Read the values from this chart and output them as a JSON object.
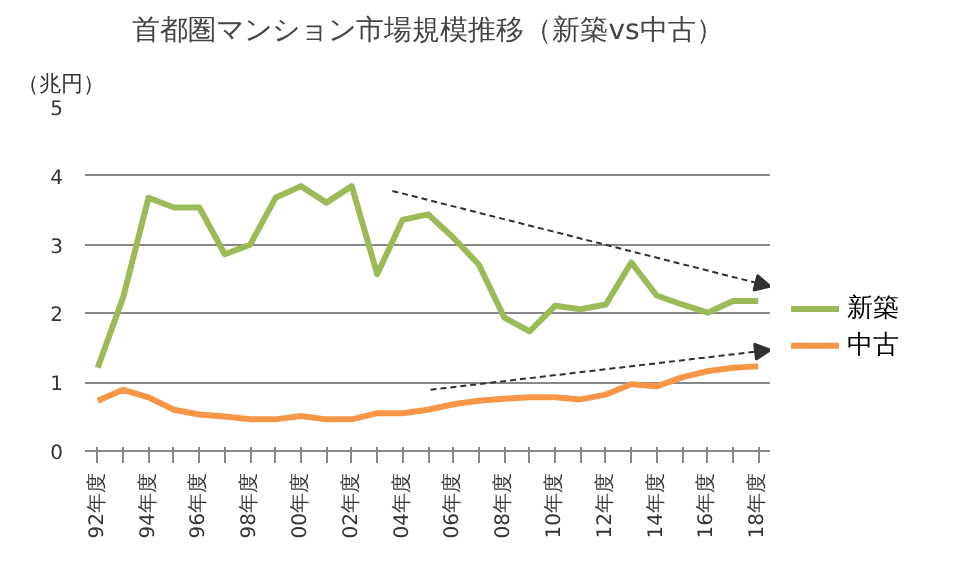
{
  "chart_data": {
    "type": "line",
    "title": "首都圏マンション市場規模推移（新築vs中古）",
    "ylabel": "（兆円）",
    "categories": [
      "92年度",
      null,
      "94年度",
      null,
      "96年度",
      null,
      "98年度",
      null,
      "00年度",
      null,
      "02年度",
      null,
      "04年度",
      null,
      "06年度",
      null,
      "08年度",
      null,
      "10年度",
      null,
      "12年度",
      null,
      "14年度",
      null,
      "16年度",
      null,
      "18年度"
    ],
    "ylim": [
      0,
      5
    ],
    "yticks": [
      0,
      1,
      2,
      3,
      4,
      5
    ],
    "grid": "y",
    "legend": "right",
    "series": [
      {
        "name": "新築",
        "color": "#9bbb59",
        "values": [
          1.21,
          2.23,
          3.68,
          3.54,
          3.54,
          2.86,
          3.0,
          3.68,
          3.85,
          3.61,
          3.85,
          2.57,
          3.36,
          3.44,
          3.1,
          2.71,
          1.94,
          1.74,
          2.11,
          2.06,
          2.13,
          2.74,
          2.26,
          2.13,
          2.01,
          2.18,
          2.18
        ]
      },
      {
        "name": "中古",
        "color": "#f79646",
        "values": [
          0.73,
          0.89,
          0.78,
          0.6,
          0.53,
          0.5,
          0.46,
          0.46,
          0.51,
          0.46,
          0.46,
          0.55,
          0.55,
          0.6,
          0.68,
          0.73,
          0.76,
          0.78,
          0.78,
          0.75,
          0.82,
          0.97,
          0.94,
          1.07,
          1.16,
          1.21,
          1.23
        ]
      }
    ]
  }
}
